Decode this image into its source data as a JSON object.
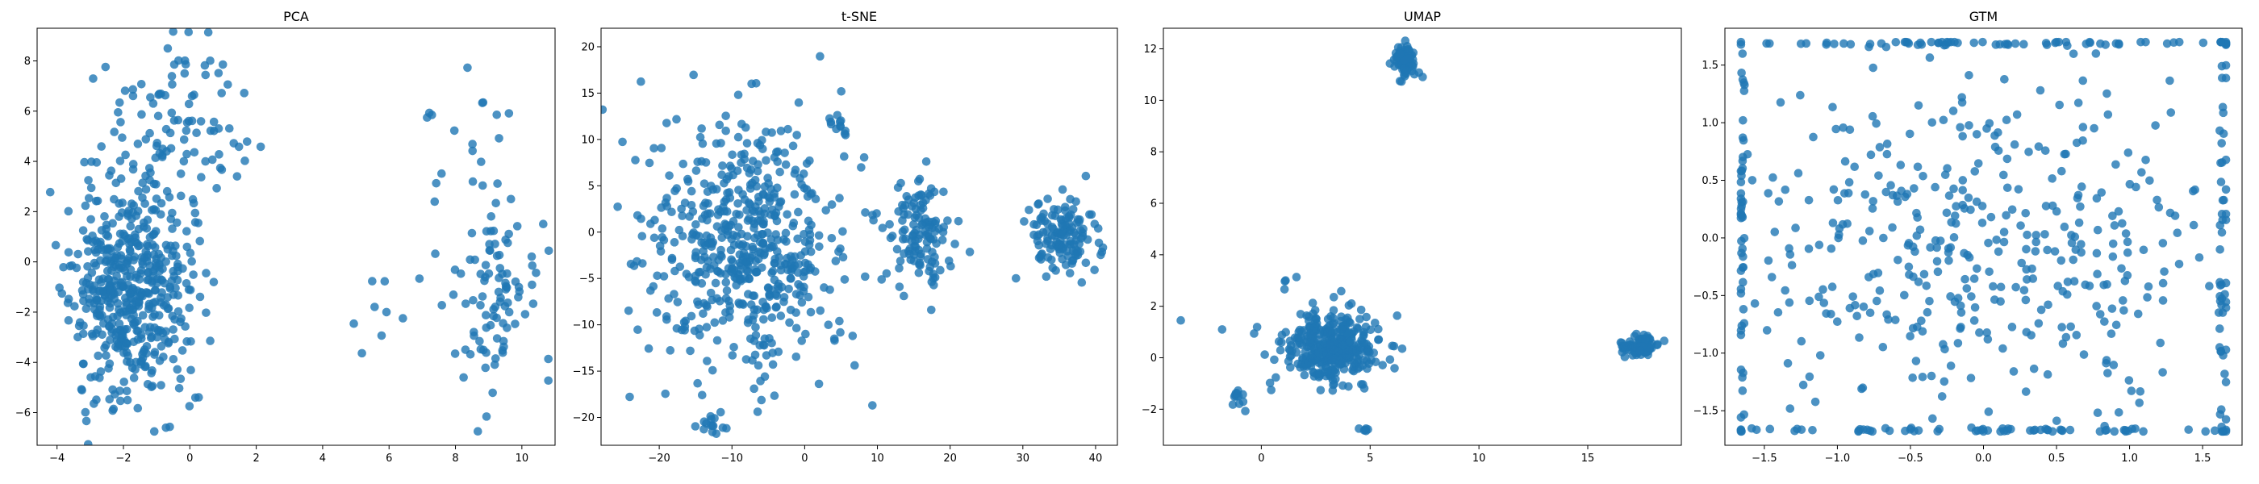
{
  "figure": {
    "point_color": "#1f77b4",
    "point_opacity": 0.8,
    "panel_count": 4
  },
  "chart_data": [
    {
      "type": "scatter",
      "title": "PCA",
      "xlabel": "",
      "ylabel": "",
      "xlim": [
        -4.6,
        11.0
      ],
      "ylim": [
        -7.3,
        9.3
      ],
      "xticks": [
        -4,
        -2,
        0,
        2,
        4,
        6,
        8,
        10
      ],
      "yticks": [
        -6,
        -4,
        -2,
        0,
        2,
        4,
        6,
        8
      ],
      "grid": false,
      "clusters": [
        {
          "name": "",
          "cx": -1.8,
          "cy": -1.0,
          "sx": 0.9,
          "sy": 2.2,
          "n": 520,
          "seed": 11
        },
        {
          "name": "",
          "cx": -0.4,
          "cy": 5.6,
          "sx": 1.1,
          "sy": 1.5,
          "n": 90,
          "seed": 12
        },
        {
          "name": "",
          "cx": 9.0,
          "cy": -1.2,
          "sx": 0.7,
          "sy": 2.0,
          "n": 90,
          "seed": 13
        },
        {
          "name": "",
          "cx": 8.6,
          "cy": 4.5,
          "sx": 0.9,
          "sy": 1.4,
          "n": 18,
          "seed": 14
        },
        {
          "name": "",
          "cx": 6.3,
          "cy": -1.6,
          "sx": 0.8,
          "sy": 1.6,
          "n": 12,
          "seed": 15
        }
      ]
    },
    {
      "type": "scatter",
      "title": "t-SNE",
      "xlabel": "",
      "ylabel": "",
      "xlim": [
        -28,
        43
      ],
      "ylim": [
        -23,
        22
      ],
      "xticks": [
        -20,
        -10,
        0,
        10,
        20,
        30,
        40
      ],
      "yticks": [
        -20,
        -15,
        -10,
        -5,
        0,
        5,
        10,
        15,
        20
      ],
      "grid": false,
      "clusters": [
        {
          "name": "",
          "cx": -8,
          "cy": -1.5,
          "sx": 7.0,
          "sy": 7.0,
          "n": 560,
          "seed": 21
        },
        {
          "name": "",
          "cx": 15.5,
          "cy": 0.3,
          "sx": 2.3,
          "sy": 2.6,
          "n": 120,
          "seed": 22
        },
        {
          "name": "",
          "cx": 35.5,
          "cy": -0.5,
          "sx": 2.5,
          "sy": 2.0,
          "n": 130,
          "seed": 23
        },
        {
          "name": "",
          "cx": -13,
          "cy": -20.5,
          "sx": 1.0,
          "sy": 0.8,
          "n": 14,
          "seed": 24
        },
        {
          "name": "",
          "cx": 4.5,
          "cy": 11.5,
          "sx": 0.8,
          "sy": 0.7,
          "n": 12,
          "seed": 25
        }
      ]
    },
    {
      "type": "scatter",
      "title": "UMAP",
      "xlabel": "",
      "ylabel": "",
      "xlim": [
        -4.5,
        19.3
      ],
      "ylim": [
        -3.4,
        12.8
      ],
      "xticks": [
        0,
        5,
        10,
        15
      ],
      "yticks": [
        -2,
        0,
        2,
        4,
        6,
        8,
        10,
        12
      ],
      "grid": false,
      "clusters": [
        {
          "name": "",
          "cx": 3.3,
          "cy": 0.4,
          "sx": 1.1,
          "sy": 0.7,
          "n": 380,
          "seed": 31
        },
        {
          "name": "",
          "cx": 6.6,
          "cy": 11.6,
          "sx": 0.22,
          "sy": 0.3,
          "n": 100,
          "seed": 32
        },
        {
          "name": "",
          "cx": 17.4,
          "cy": 0.45,
          "sx": 0.4,
          "sy": 0.18,
          "n": 100,
          "seed": 33
        },
        {
          "name": "",
          "cx": -1.1,
          "cy": -1.5,
          "sx": 0.2,
          "sy": 0.2,
          "n": 12,
          "seed": 34
        },
        {
          "name": "",
          "cx": 4.8,
          "cy": -2.8,
          "sx": 0.1,
          "sy": 0.08,
          "n": 6,
          "seed": 35
        },
        {
          "name": "",
          "cx": 1.0,
          "cy": 2.8,
          "sx": 0.3,
          "sy": 0.2,
          "n": 4,
          "seed": 36
        }
      ],
      "points": [
        [
          -3.7,
          1.45
        ],
        [
          -1.8,
          1.1
        ]
      ]
    },
    {
      "type": "scatter",
      "title": "GTM",
      "xlabel": "",
      "ylabel": "",
      "xlim": [
        -1.77,
        1.77
      ],
      "ylim": [
        -1.8,
        1.82
      ],
      "xticks": [
        -1.5,
        -1.0,
        -0.5,
        0.0,
        0.5,
        1.0,
        1.5
      ],
      "yticks": [
        -1.5,
        -1.0,
        -0.5,
        0.0,
        0.5,
        1.0,
        1.5
      ],
      "grid": false,
      "clusters": [
        {
          "name": "",
          "cx": 0.0,
          "cy": 0.0,
          "sx": 0.85,
          "sy": 0.85,
          "n": 420,
          "seed": 41,
          "clip": [
            -1.66,
            1.66,
            -1.68,
            1.7
          ]
        },
        {
          "name": "",
          "cx": 0.0,
          "cy": 1.69,
          "sx": 1.0,
          "sy": 0.01,
          "n": 60,
          "seed": 42,
          "clip": [
            -1.66,
            1.66,
            -1.68,
            1.7
          ]
        },
        {
          "name": "",
          "cx": 0.0,
          "cy": -1.67,
          "sx": 1.0,
          "sy": 0.01,
          "n": 60,
          "seed": 43,
          "clip": [
            -1.66,
            1.66,
            -1.68,
            1.7
          ]
        },
        {
          "name": "",
          "cx": -1.65,
          "cy": 0.0,
          "sx": 0.01,
          "sy": 1.0,
          "n": 40,
          "seed": 44,
          "clip": [
            -1.66,
            1.66,
            -1.68,
            1.7
          ]
        },
        {
          "name": "",
          "cx": 1.63,
          "cy": 0.0,
          "sx": 0.01,
          "sy": 1.0,
          "n": 40,
          "seed": 45,
          "clip": [
            -1.66,
            1.66,
            -1.68,
            1.7
          ]
        }
      ]
    }
  ]
}
